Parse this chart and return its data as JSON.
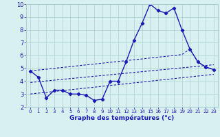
{
  "x_hours": [
    0,
    1,
    2,
    3,
    4,
    5,
    6,
    7,
    8,
    9,
    10,
    11,
    12,
    13,
    14,
    15,
    16,
    17,
    18,
    19,
    20,
    21,
    22,
    23
  ],
  "temp_actual": [
    4.8,
    4.3,
    2.7,
    3.3,
    3.3,
    3.0,
    3.0,
    2.9,
    2.5,
    2.6,
    4.0,
    4.0,
    5.5,
    7.2,
    8.5,
    10.0,
    9.5,
    9.3,
    9.7,
    8.0,
    6.5,
    5.5,
    5.1,
    4.9
  ],
  "ref_max": [
    4.8,
    4.87,
    4.93,
    5.0,
    5.07,
    5.13,
    5.2,
    5.27,
    5.33,
    5.4,
    5.47,
    5.53,
    5.6,
    5.67,
    5.73,
    5.8,
    5.87,
    5.93,
    6.0,
    6.07,
    6.5,
    5.5,
    5.1,
    4.9
  ],
  "ref_mean": [
    3.9,
    3.96,
    4.02,
    4.08,
    4.14,
    4.2,
    4.26,
    4.32,
    4.38,
    4.44,
    4.5,
    4.56,
    4.62,
    4.68,
    4.74,
    4.8,
    4.86,
    4.92,
    4.98,
    5.04,
    5.1,
    5.16,
    5.22,
    5.28
  ],
  "ref_min": [
    3.0,
    3.07,
    3.13,
    3.2,
    3.27,
    3.33,
    3.4,
    3.47,
    3.53,
    3.6,
    3.67,
    3.73,
    3.8,
    3.87,
    3.93,
    4.0,
    4.07,
    4.13,
    4.2,
    4.27,
    4.33,
    4.4,
    4.47,
    4.53
  ],
  "line_color": "#1a1ab4",
  "bg_color": "#d9f0f0",
  "grid_color": "#aacfcf",
  "xlabel": "Graphe des températures (°c)",
  "ylim": [
    2,
    10
  ],
  "xlim": [
    -0.5,
    23.5
  ],
  "yticks": [
    2,
    3,
    4,
    5,
    6,
    7,
    8,
    9,
    10
  ],
  "xticks": [
    0,
    1,
    2,
    3,
    4,
    5,
    6,
    7,
    8,
    9,
    10,
    11,
    12,
    13,
    14,
    15,
    16,
    17,
    18,
    19,
    20,
    21,
    22,
    23
  ]
}
